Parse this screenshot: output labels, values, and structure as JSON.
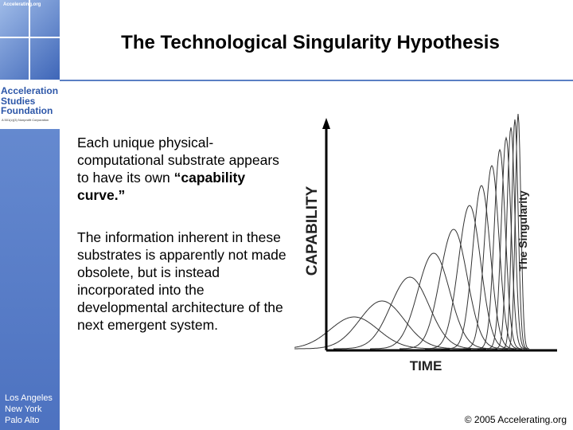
{
  "sidebar": {
    "logo_text": "Accelerating.org",
    "org_name": [
      "Acceleration",
      "Studies",
      "Foundation"
    ],
    "tagline": "A 501(c)(3) Nonprofit Corporation",
    "locations": [
      "Los Angeles",
      "New York",
      "Palo Alto"
    ]
  },
  "title": "The Technological Singularity Hypothesis",
  "body": [
    {
      "text": "Each unique physical-computational substrate appears to have its own ",
      "emphasis": "“capability curve.”"
    },
    {
      "text": "The information inherent in these substrates is apparently not made obsolete, but is instead incorporated into the developmental architecture of the next emergent system."
    }
  ],
  "diagram": {
    "y_axis_label": "CAPABILITY",
    "x_axis_label": "TIME",
    "curve_label": "The Singularity"
  },
  "footer": "© 2005 Accelerating.org"
}
